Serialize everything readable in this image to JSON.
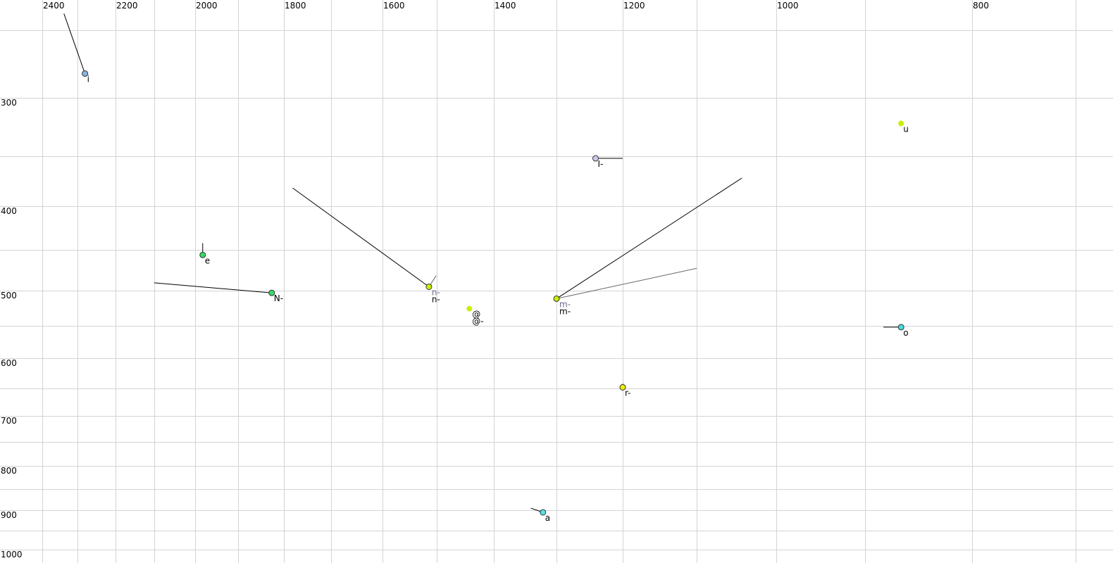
{
  "chart_data": {
    "type": "scatter",
    "title": "",
    "xlabel": "",
    "ylabel": "",
    "x_axis": {
      "reversed": true,
      "scale": "log",
      "range": [
        2500,
        700
      ],
      "grid_values": [
        2400,
        2300,
        2200,
        2100,
        2000,
        1900,
        1800,
        1700,
        1600,
        1500,
        1400,
        1300,
        1200,
        1100,
        1000,
        900,
        800,
        700
      ],
      "tick_labels": [
        "2400",
        "2200",
        "2000",
        "1800",
        "1600",
        "1400",
        "1200",
        "1000",
        "800"
      ]
    },
    "y_axis": {
      "reversed": false,
      "scale": "log",
      "range": [
        240,
        1000
      ],
      "grid_values": [
        250,
        300,
        350,
        400,
        450,
        500,
        550,
        600,
        650,
        700,
        750,
        800,
        850,
        900,
        950,
        1000
      ],
      "tick_labels": [
        "300",
        "400",
        "500",
        "600",
        "700",
        "800",
        "900",
        "1000"
      ]
    },
    "grid": true,
    "points": [
      {
        "label": "i",
        "x": 2280,
        "y": 281,
        "color": "#8ab4e6",
        "outline": true,
        "trajectory": [
          {
            "x": 2338,
            "y": 239
          }
        ]
      },
      {
        "label": "u",
        "x": 865,
        "y": 321,
        "color": "#ccee00",
        "outline": false,
        "trajectory": []
      },
      {
        "label": "I-",
        "x": 1240,
        "y": 352,
        "color": "#c8c8f0",
        "outline": true,
        "trajectory": [
          {
            "x": 1200,
            "y": 352
          }
        ]
      },
      {
        "label": "e",
        "x": 1982,
        "y": 456,
        "color": "#33dd66",
        "outline": true,
        "trajectory": [
          {
            "x": 1982,
            "y": 442
          }
        ]
      },
      {
        "label": "N-",
        "x": 1826,
        "y": 503,
        "color": "#33dd66",
        "outline": true,
        "trajectory": [
          {
            "x": 2100,
            "y": 490
          }
        ]
      },
      {
        "label": "n-",
        "label2": "n-",
        "x": 1514,
        "y": 495,
        "color": "#ccee00",
        "outline": true,
        "trajectory": [
          {
            "x": 1781,
            "y": 381
          }
        ],
        "trajectory2": [
          {
            "x": 1501,
            "y": 481
          }
        ]
      },
      {
        "label": "@",
        "label2": "@-",
        "x": 1442,
        "y": 525,
        "color": "#ccee00",
        "outline": false,
        "trajectory": []
      },
      {
        "label": "m-",
        "label2": "m-",
        "x": 1300,
        "y": 511,
        "color": "#ccee00",
        "outline": true,
        "trajectory": [
          {
            "x": 1042,
            "y": 371
          }
        ],
        "trajectory2": [
          {
            "x": 1100,
            "y": 472
          }
        ]
      },
      {
        "label": "o",
        "x": 865,
        "y": 552,
        "color": "#44dddd",
        "outline": true,
        "trajectory": [
          {
            "x": 882,
            "y": 552
          }
        ]
      },
      {
        "label": "r-",
        "x": 1200,
        "y": 648,
        "color": "#eeee00",
        "outline": true,
        "trajectory": [
          {
            "x": 1200,
            "y": 642
          }
        ]
      },
      {
        "label": "a",
        "x": 1321,
        "y": 905,
        "color": "#55e0e8",
        "outline": true,
        "trajectory": [
          {
            "x": 1340,
            "y": 895
          }
        ]
      }
    ]
  }
}
